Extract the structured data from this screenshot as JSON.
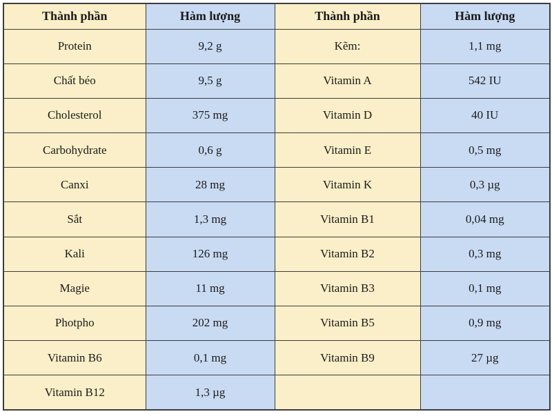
{
  "table": {
    "headers": [
      {
        "label": "Thành phần"
      },
      {
        "label": "Hàm lượng"
      },
      {
        "label": "Thành phần"
      },
      {
        "label": "Hàm lượng"
      }
    ],
    "rows": [
      {
        "component1": "Protein",
        "amount1": "9,2 g",
        "component2": "Kẽm:",
        "amount2": "1,1 mg"
      },
      {
        "component1": "Chất béo",
        "amount1": "9,5 g",
        "component2": "Vitamin A",
        "amount2": "542 IU"
      },
      {
        "component1": "Cholesterol",
        "amount1": "375 mg",
        "component2": "Vitamin D",
        "amount2": "40 IU"
      },
      {
        "component1": "Carbohydrate",
        "amount1": "0,6 g",
        "component2": "Vitamin E",
        "amount2": "0,5 mg"
      },
      {
        "component1": "Canxi",
        "amount1": "28 mg",
        "component2": "Vitamin K",
        "amount2": "0,3 µg"
      },
      {
        "component1": "Sắt",
        "amount1": "1,3 mg",
        "component2": "Vitamin B1",
        "amount2": "0,04 mg"
      },
      {
        "component1": "Kali",
        "amount1": "126 mg",
        "component2": "Vitamin B2",
        "amount2": "0,3 mg"
      },
      {
        "component1": "Magie",
        "amount1": "11 mg",
        "component2": "Vitamin B3",
        "amount2": "0,1 mg"
      },
      {
        "component1": "Photpho",
        "amount1": "202 mg",
        "component2": "Vitamin B5",
        "amount2": "0,9 mg"
      },
      {
        "component1": "Vitamin B6",
        "amount1": "0,1 mg",
        "component2": "Vitamin B9",
        "amount2": "27 µg"
      },
      {
        "component1": "Vitamin B12",
        "amount1": "1,3 µg",
        "component2": "",
        "amount2": ""
      }
    ],
    "colors": {
      "component_bg": "#faefc8",
      "amount_bg": "#c9daf3",
      "border": "#3c3c3c",
      "text": "#1a1a1a"
    }
  }
}
